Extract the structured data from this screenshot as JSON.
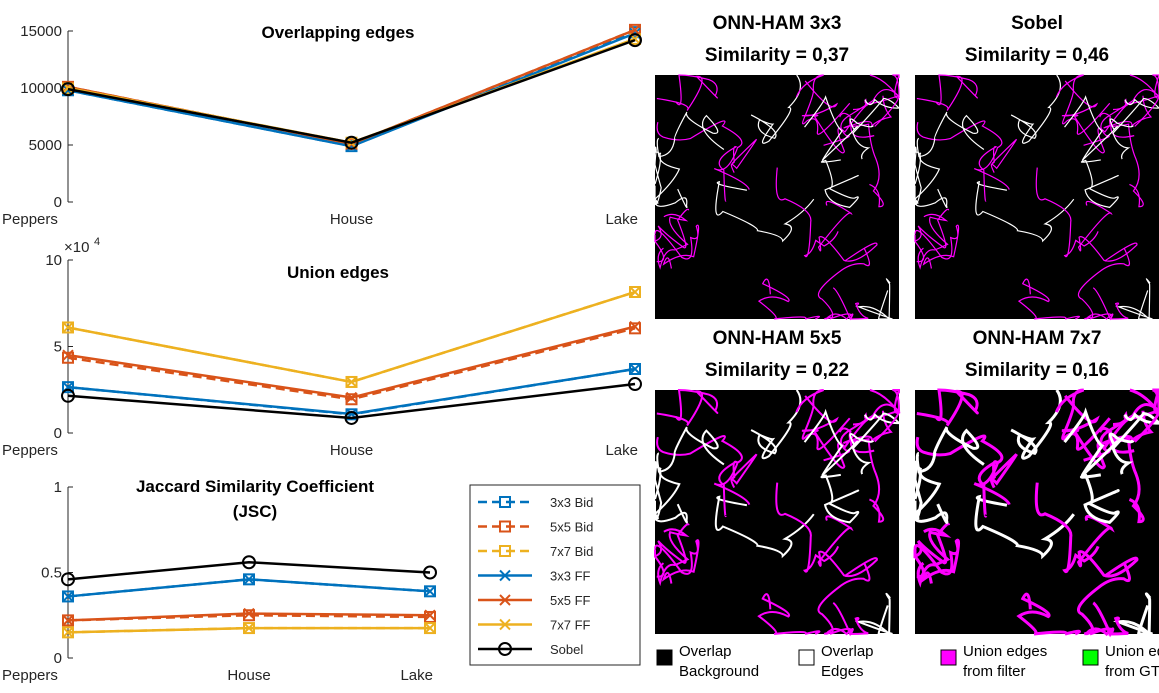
{
  "chart_data": [
    {
      "type": "line",
      "title": "Overlapping edges",
      "categories": [
        "Peppers",
        "House",
        "Lake"
      ],
      "ylim": [
        0,
        15000
      ],
      "yticks": [
        0,
        5000,
        10000,
        15000
      ],
      "series": [
        {
          "color": "#0072bd",
          "dash": true,
          "marker": "square",
          "values": [
            9800,
            4900,
            14900
          ]
        },
        {
          "color": "#d95319",
          "dash": true,
          "marker": "square",
          "values": [
            10100,
            5100,
            15100
          ]
        },
        {
          "color": "#edb120",
          "dash": true,
          "marker": "square",
          "values": [
            10000,
            5200,
            14300
          ]
        },
        {
          "color": "#0072bd",
          "dash": false,
          "marker": "x",
          "values": [
            9800,
            4900,
            14800
          ]
        },
        {
          "color": "#d95319",
          "dash": false,
          "marker": "x",
          "values": [
            10100,
            5100,
            15100
          ]
        },
        {
          "color": "#edb120",
          "dash": false,
          "marker": "x",
          "values": [
            10000,
            5200,
            14300
          ]
        },
        {
          "color": "#000000",
          "dash": false,
          "marker": "circle",
          "values": [
            9900,
            5200,
            14200
          ]
        }
      ]
    },
    {
      "type": "line",
      "title": "Union edges",
      "categories": [
        "Peppers",
        "House",
        "Lake"
      ],
      "ylim": [
        0,
        100000
      ],
      "yticks": [
        0,
        {
          "value": 50000,
          "label": "5"
        },
        {
          "value": 100000,
          "label": "10"
        }
      ],
      "ymultiplier": {
        "base": "×10",
        "exponent": "4"
      },
      "series": [
        {
          "color": "#0072bd",
          "dash": true,
          "marker": "square",
          "values": [
            26500,
            10800,
            37000
          ]
        },
        {
          "color": "#d95319",
          "dash": true,
          "marker": "square",
          "values": [
            43500,
            19500,
            60500
          ]
        },
        {
          "color": "#edb120",
          "dash": true,
          "marker": "square",
          "values": [
            61000,
            29500,
            81500
          ]
        },
        {
          "color": "#0072bd",
          "dash": false,
          "marker": "x",
          "values": [
            26500,
            11000,
            37000
          ]
        },
        {
          "color": "#d95319",
          "dash": false,
          "marker": "x",
          "values": [
            45000,
            20500,
            61500
          ]
        },
        {
          "color": "#edb120",
          "dash": false,
          "marker": "x",
          "values": [
            61000,
            29500,
            81500
          ]
        },
        {
          "color": "#000000",
          "dash": false,
          "marker": "circle",
          "values": [
            21500,
            8700,
            28300
          ]
        }
      ]
    },
    {
      "type": "line",
      "title": [
        "Jaccard Similarity Coefficient",
        "(JSC)"
      ],
      "categories": [
        "Peppers",
        "House",
        "Lake"
      ],
      "ylim": [
        0,
        1
      ],
      "yticks": [
        0,
        0.5,
        1
      ],
      "legend": "east outside",
      "series": [
        {
          "name": "3x3 Bid",
          "color": "#0072bd",
          "dash": true,
          "marker": "square",
          "values": [
            0.36,
            0.46,
            0.39
          ]
        },
        {
          "name": "5x5 Bid",
          "color": "#d95319",
          "dash": true,
          "marker": "square",
          "values": [
            0.22,
            0.25,
            0.24
          ]
        },
        {
          "name": "7x7 Bid",
          "color": "#edb120",
          "dash": true,
          "marker": "square",
          "values": [
            0.15,
            0.175,
            0.175
          ]
        },
        {
          "name": "3x3 FF",
          "color": "#0072bd",
          "dash": false,
          "marker": "x",
          "values": [
            0.36,
            0.46,
            0.39
          ]
        },
        {
          "name": "5x5 FF",
          "color": "#d95319",
          "dash": false,
          "marker": "x",
          "values": [
            0.22,
            0.26,
            0.25
          ]
        },
        {
          "name": "7x7 FF",
          "color": "#edb120",
          "dash": false,
          "marker": "x",
          "values": [
            0.15,
            0.175,
            0.175
          ]
        },
        {
          "name": "Sobel",
          "color": "#000000",
          "dash": false,
          "marker": "circle",
          "values": [
            0.46,
            0.56,
            0.5
          ]
        }
      ]
    }
  ],
  "panels": [
    {
      "title": "ONN-HAM 3x3",
      "subtitle": "Similarity = 0,37"
    },
    {
      "title": "Sobel",
      "subtitle": "Similarity = 0,46"
    },
    {
      "title": "ONN-HAM 5x5",
      "subtitle": "Similarity = 0,22"
    },
    {
      "title": "ONN-HAM 7x7",
      "subtitle": "Similarity = 0,16"
    }
  ],
  "panel_legend": [
    {
      "label": [
        "Overlap",
        "Background"
      ],
      "color": "#000000"
    },
    {
      "label": [
        "Overlap",
        "Edges"
      ],
      "color": "#ffffff"
    },
    {
      "label": [
        "Union edges",
        "from filter"
      ],
      "color": "#ff00ff"
    },
    {
      "label": [
        "Union edges",
        "from GT"
      ],
      "color": "#00ff00"
    }
  ]
}
